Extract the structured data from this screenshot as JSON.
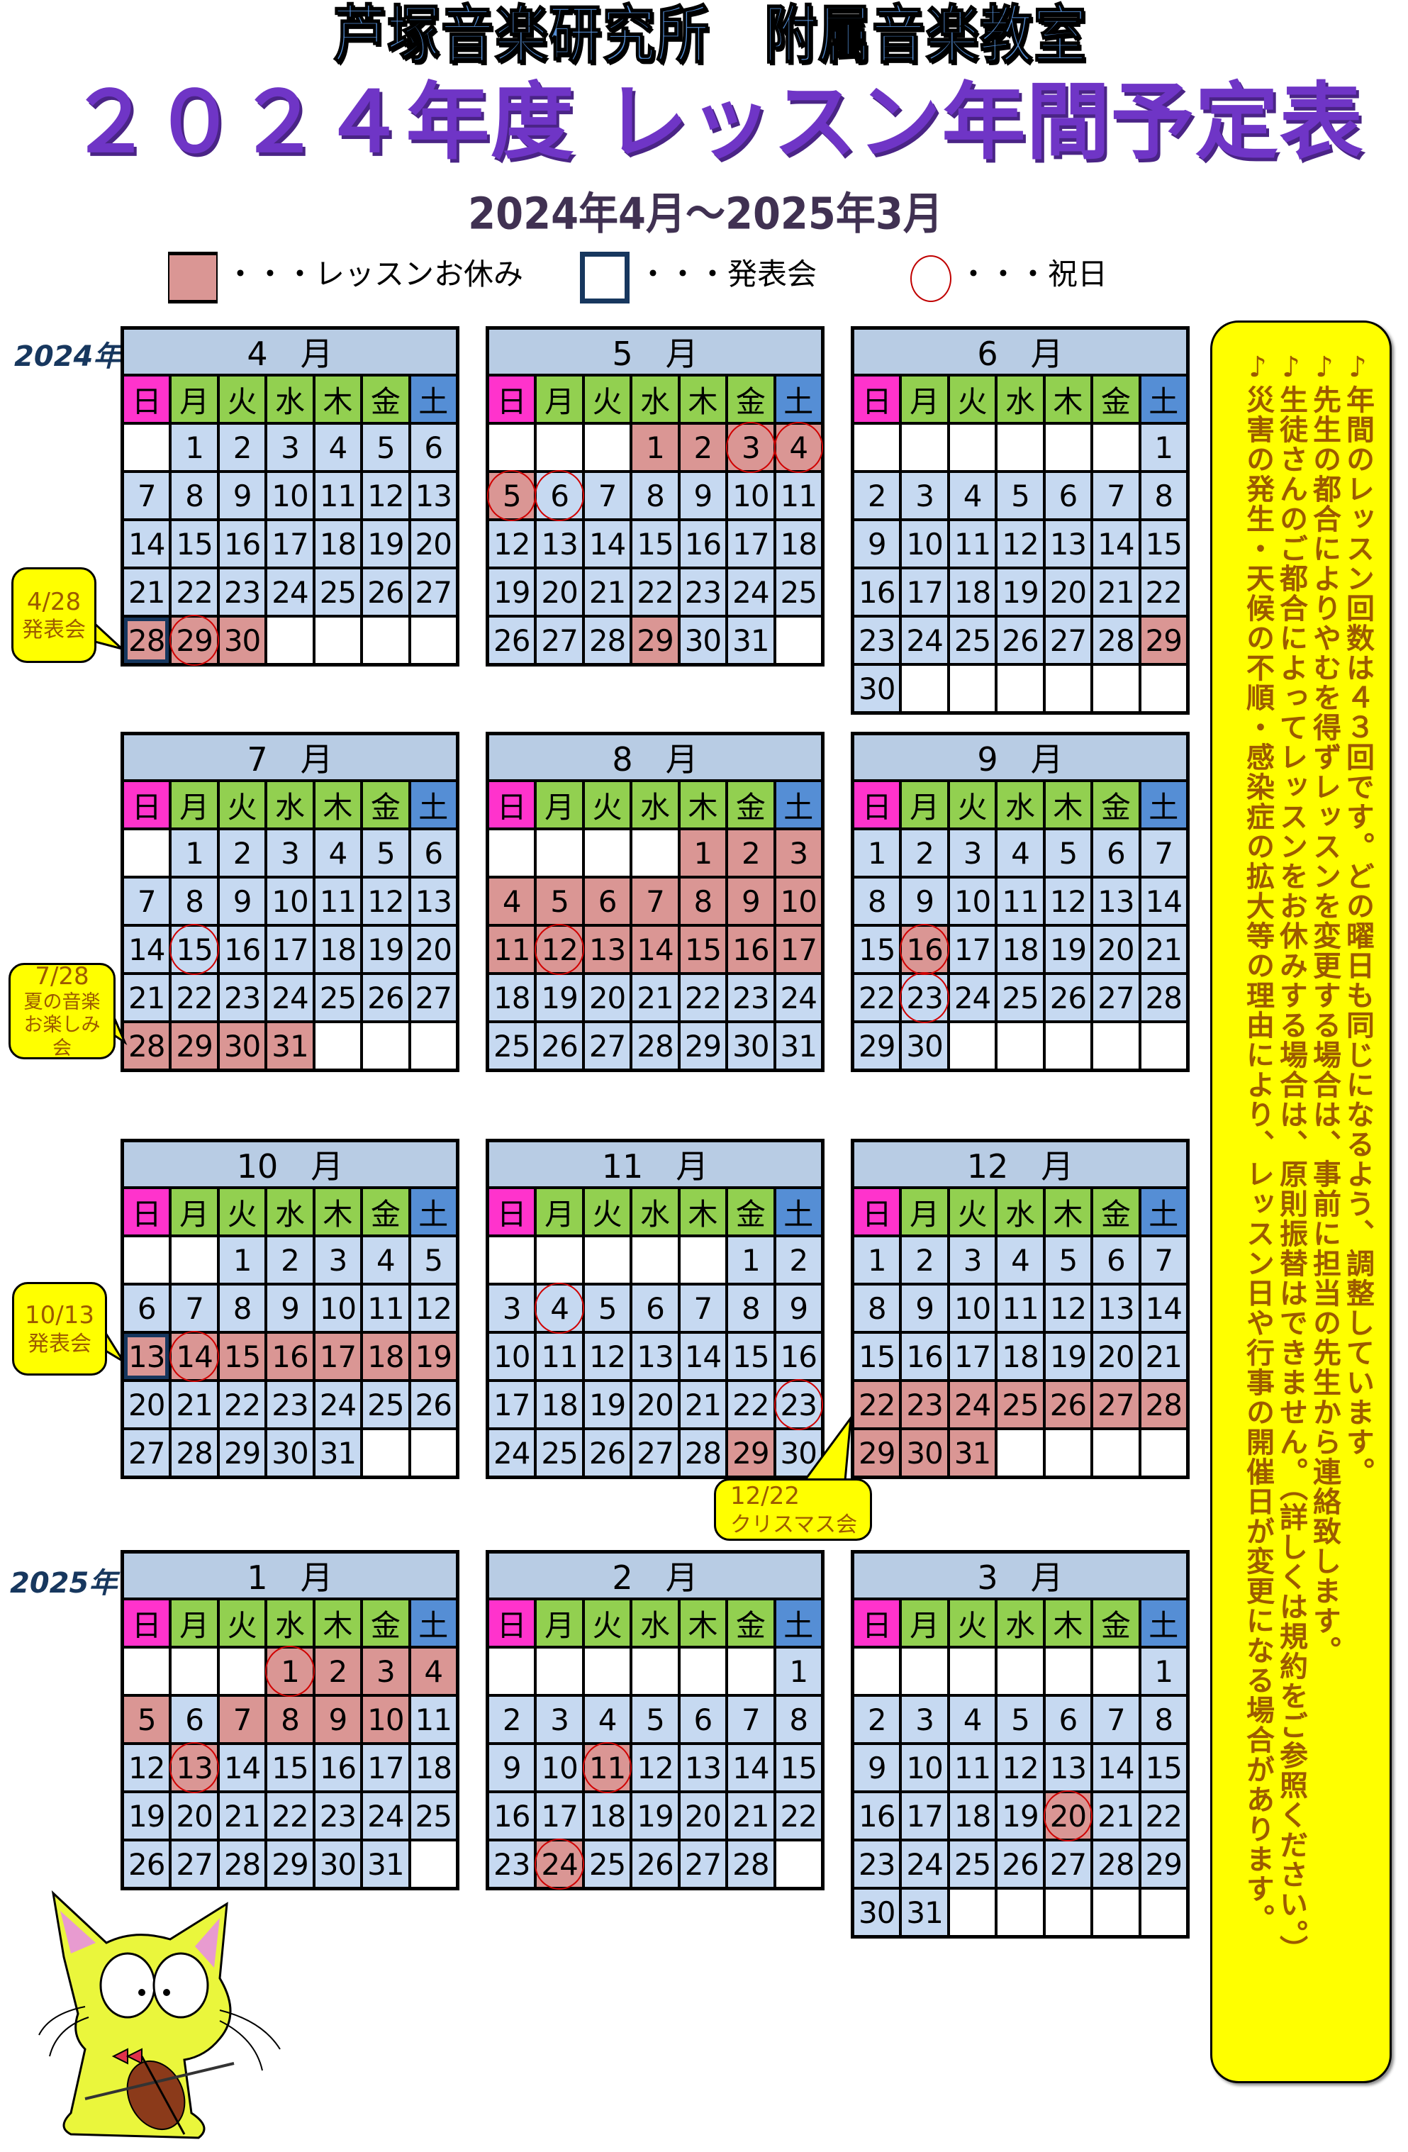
{
  "header": {
    "organization": "芦塚音楽研究所　附属音楽教室",
    "title": "２０２４年度 レッスン年間予定表",
    "period": "2024年4月～2025年3月"
  },
  "legend": {
    "lesson_off": "・・・レッスンお休み",
    "recital": "・・・発表会",
    "holiday": "・・・祝日",
    "colors": {
      "lesson_off": "#da9694",
      "recital": "#17375e",
      "holiday": "#d00000"
    }
  },
  "years": {
    "first": "2024年",
    "second": "2025年"
  },
  "weekdays": [
    "日",
    "月",
    "火",
    "水",
    "木",
    "金",
    "土"
  ],
  "colors": {
    "month_header": "#b8cce4",
    "sunday": "#ff33cc",
    "weekday": "#92d050",
    "saturday": "#558ed5",
    "day": "#c6d9f1",
    "callout": "#ffff00",
    "callout_text": "#9c5a00"
  },
  "calendars": [
    {
      "label": "4　月",
      "weeks": [
        [
          null,
          1,
          2,
          3,
          4,
          5,
          6
        ],
        [
          7,
          8,
          9,
          10,
          11,
          12,
          13
        ],
        [
          14,
          15,
          16,
          17,
          18,
          19,
          20
        ],
        [
          21,
          22,
          23,
          24,
          25,
          26,
          27
        ],
        [
          28,
          29,
          30,
          null,
          null,
          null,
          null
        ]
      ],
      "off": [
        28,
        29,
        30
      ],
      "holidays": [
        29
      ],
      "events": [
        28
      ]
    },
    {
      "label": "5　月",
      "weeks": [
        [
          null,
          null,
          null,
          1,
          2,
          3,
          4
        ],
        [
          5,
          6,
          7,
          8,
          9,
          10,
          11
        ],
        [
          12,
          13,
          14,
          15,
          16,
          17,
          18
        ],
        [
          19,
          20,
          21,
          22,
          23,
          24,
          25
        ],
        [
          26,
          27,
          28,
          29,
          30,
          31,
          null
        ]
      ],
      "off": [
        1,
        2,
        3,
        4,
        5,
        29
      ],
      "holidays": [
        3,
        4,
        5,
        6
      ],
      "events": []
    },
    {
      "label": "6　月",
      "weeks": [
        [
          null,
          null,
          null,
          null,
          null,
          null,
          1
        ],
        [
          2,
          3,
          4,
          5,
          6,
          7,
          8
        ],
        [
          9,
          10,
          11,
          12,
          13,
          14,
          15
        ],
        [
          16,
          17,
          18,
          19,
          20,
          21,
          22
        ],
        [
          23,
          24,
          25,
          26,
          27,
          28,
          29
        ],
        [
          30,
          null,
          null,
          null,
          null,
          null,
          null
        ]
      ],
      "off": [
        29
      ],
      "holidays": [],
      "events": []
    },
    {
      "label": "7　月",
      "weeks": [
        [
          null,
          1,
          2,
          3,
          4,
          5,
          6
        ],
        [
          7,
          8,
          9,
          10,
          11,
          12,
          13
        ],
        [
          14,
          15,
          16,
          17,
          18,
          19,
          20
        ],
        [
          21,
          22,
          23,
          24,
          25,
          26,
          27
        ],
        [
          28,
          29,
          30,
          31,
          null,
          null,
          null
        ]
      ],
      "off": [
        28,
        29,
        30,
        31
      ],
      "holidays": [
        15
      ],
      "events": []
    },
    {
      "label": "8　月",
      "weeks": [
        [
          null,
          null,
          null,
          null,
          1,
          2,
          3
        ],
        [
          4,
          5,
          6,
          7,
          8,
          9,
          10
        ],
        [
          11,
          12,
          13,
          14,
          15,
          16,
          17
        ],
        [
          18,
          19,
          20,
          21,
          22,
          23,
          24
        ],
        [
          25,
          26,
          27,
          28,
          29,
          30,
          31
        ]
      ],
      "off": [
        1,
        2,
        3,
        4,
        5,
        6,
        7,
        8,
        9,
        10,
        11,
        12,
        13,
        14,
        15,
        16,
        17
      ],
      "holidays": [
        12
      ],
      "events": []
    },
    {
      "label": "9　月",
      "weeks": [
        [
          1,
          2,
          3,
          4,
          5,
          6,
          7
        ],
        [
          8,
          9,
          10,
          11,
          12,
          13,
          14
        ],
        [
          15,
          16,
          17,
          18,
          19,
          20,
          21
        ],
        [
          22,
          23,
          24,
          25,
          26,
          27,
          28
        ],
        [
          29,
          30,
          null,
          null,
          null,
          null,
          null
        ]
      ],
      "off": [
        16
      ],
      "holidays": [
        16,
        23
      ],
      "events": []
    },
    {
      "label": "10　月",
      "weeks": [
        [
          null,
          null,
          1,
          2,
          3,
          4,
          5
        ],
        [
          6,
          7,
          8,
          9,
          10,
          11,
          12
        ],
        [
          13,
          14,
          15,
          16,
          17,
          18,
          19
        ],
        [
          20,
          21,
          22,
          23,
          24,
          25,
          26
        ],
        [
          27,
          28,
          29,
          30,
          31,
          null,
          null
        ]
      ],
      "off": [
        13,
        14,
        15,
        16,
        17,
        18,
        19
      ],
      "holidays": [
        14
      ],
      "events": [
        13
      ]
    },
    {
      "label": "11　月",
      "weeks": [
        [
          null,
          null,
          null,
          null,
          null,
          1,
          2
        ],
        [
          3,
          4,
          5,
          6,
          7,
          8,
          9
        ],
        [
          10,
          11,
          12,
          13,
          14,
          15,
          16
        ],
        [
          17,
          18,
          19,
          20,
          21,
          22,
          23
        ],
        [
          24,
          25,
          26,
          27,
          28,
          29,
          30
        ]
      ],
      "off": [
        29
      ],
      "holidays": [
        4,
        23
      ],
      "events": []
    },
    {
      "label": "12　月",
      "weeks": [
        [
          1,
          2,
          3,
          4,
          5,
          6,
          7
        ],
        [
          8,
          9,
          10,
          11,
          12,
          13,
          14
        ],
        [
          15,
          16,
          17,
          18,
          19,
          20,
          21
        ],
        [
          22,
          23,
          24,
          25,
          26,
          27,
          28
        ],
        [
          29,
          30,
          31,
          null,
          null,
          null,
          null
        ]
      ],
      "off": [
        22,
        23,
        24,
        25,
        26,
        27,
        28,
        29,
        30,
        31
      ],
      "holidays": [],
      "events": []
    },
    {
      "label": "1　月",
      "weeks": [
        [
          null,
          null,
          null,
          1,
          2,
          3,
          4
        ],
        [
          5,
          6,
          7,
          8,
          9,
          10,
          11
        ],
        [
          12,
          13,
          14,
          15,
          16,
          17,
          18
        ],
        [
          19,
          20,
          21,
          22,
          23,
          24,
          25
        ],
        [
          26,
          27,
          28,
          29,
          30,
          31,
          null
        ]
      ],
      "off": [
        1,
        2,
        3,
        4,
        5,
        7,
        8,
        9,
        10,
        13
      ],
      "holidays": [
        1,
        13
      ],
      "events": []
    },
    {
      "label": "2　月",
      "weeks": [
        [
          null,
          null,
          null,
          null,
          null,
          null,
          1
        ],
        [
          2,
          3,
          4,
          5,
          6,
          7,
          8
        ],
        [
          9,
          10,
          11,
          12,
          13,
          14,
          15
        ],
        [
          16,
          17,
          18,
          19,
          20,
          21,
          22
        ],
        [
          23,
          24,
          25,
          26,
          27,
          28,
          null
        ]
      ],
      "off": [
        11,
        24
      ],
      "holidays": [
        11,
        24
      ],
      "events": []
    },
    {
      "label": "3　月",
      "weeks": [
        [
          null,
          null,
          null,
          null,
          null,
          null,
          1
        ],
        [
          2,
          3,
          4,
          5,
          6,
          7,
          8
        ],
        [
          9,
          10,
          11,
          12,
          13,
          14,
          15
        ],
        [
          16,
          17,
          18,
          19,
          20,
          21,
          22
        ],
        [
          23,
          24,
          25,
          26,
          27,
          28,
          29
        ],
        [
          30,
          31,
          null,
          null,
          null,
          null,
          null
        ]
      ],
      "off": [
        20
      ],
      "holidays": [
        20
      ],
      "events": []
    }
  ],
  "callouts": [
    {
      "date": "4/28",
      "text": "発表会"
    },
    {
      "date": "7/28",
      "text": "夏の音楽お楽しみ会"
    },
    {
      "date": "10/13",
      "text": "発表会"
    },
    {
      "date": "12/22",
      "text": "クリスマス会"
    }
  ],
  "notes": [
    "♪年間のレッスン回数は４３回です。どの曜日も同じになるよう、調整しています。",
    "♪先生の都合によりやむを得ずレッスンを変更する場合は、事前に担当の先生から連絡致します。",
    "♪生徒さんのご都合によってレッスンをお休みする場合は、原則振替はできません。（詳しくは規約をご参照ください。）",
    "♪災害の発生・天候の不順・感染症の拡大等の理由により、レッスン日や行事の開催日が変更になる場合があります。"
  ],
  "mascot": "cat-playing-violin"
}
